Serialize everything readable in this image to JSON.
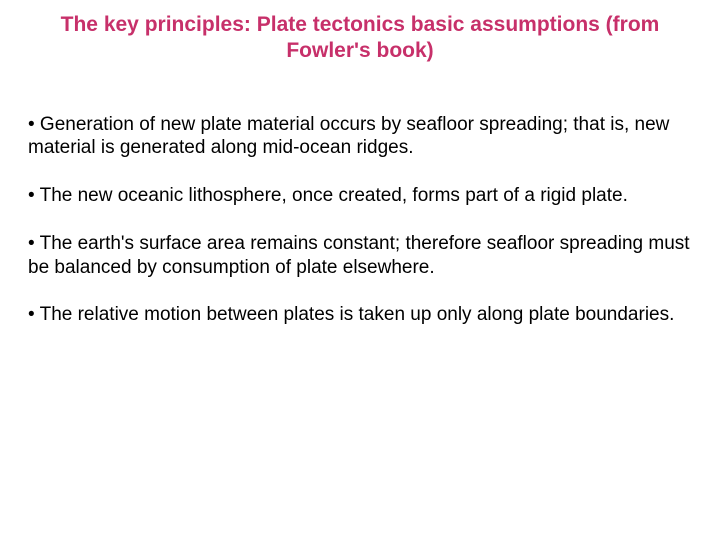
{
  "title": {
    "text": "The key principles: Plate tectonics basic assumptions (from Fowler's book)",
    "color": "#c7306a",
    "fontsize": 21
  },
  "bullets": {
    "color": "#000000",
    "fontsize": 19,
    "items": [
      "• Generation of new plate material occurs by seafloor spreading; that is, new material is generated along mid-ocean ridges.",
      "• The new oceanic lithosphere, once created, forms part of a rigid plate.",
      "• The earth's surface area remains constant; therefore seafloor spreading must be balanced by consumption of plate elsewhere.",
      "• The relative motion between plates is taken up only along plate boundaries."
    ]
  },
  "background_color": "#ffffff"
}
